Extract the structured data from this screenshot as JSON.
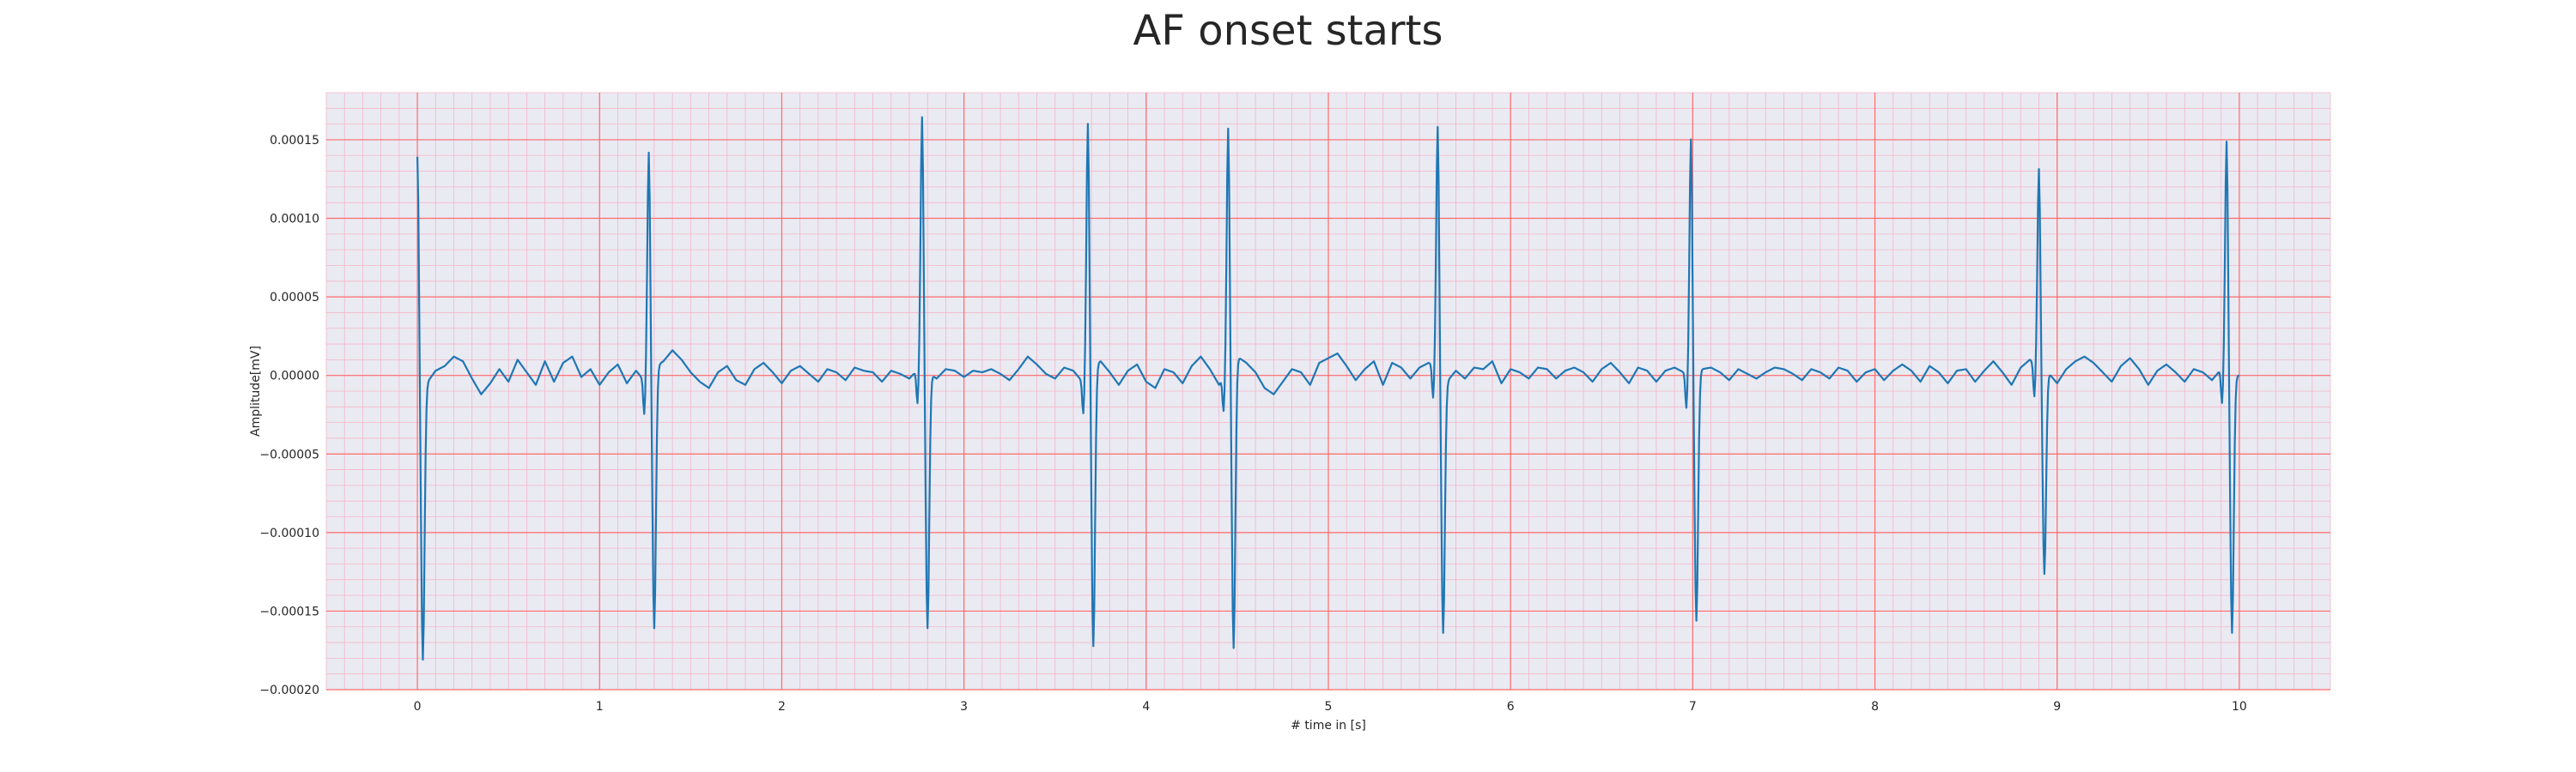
{
  "chart_data": {
    "type": "line",
    "title": "AF onset starts",
    "xlabel": "# time in [s]",
    "ylabel": "Amplitude[mV]",
    "xlim": [
      -0.5,
      10.5
    ],
    "ylim": [
      -0.0002,
      0.00018
    ],
    "xticks": [
      0,
      1,
      2,
      3,
      4,
      5,
      6,
      7,
      8,
      9,
      10
    ],
    "xtick_labels": [
      "0",
      "1",
      "2",
      "3",
      "4",
      "5",
      "6",
      "7",
      "8",
      "9",
      "10"
    ],
    "yticks": [
      -0.0002,
      -0.00015,
      -0.0001,
      -5e-05,
      0,
      5e-05,
      0.0001,
      0.00015
    ],
    "ytick_labels": [
      "−0.00020",
      "−0.00015",
      "−0.00010",
      "−0.00005",
      "0.00000",
      "0.00005",
      "0.00010",
      "0.00015"
    ],
    "grid": true,
    "colors": {
      "background": "#eaeaf2",
      "major_grid": "#ff6b6b",
      "minor_grid": "#f4b6c8",
      "line": "#1f77b4"
    },
    "series": [
      {
        "color": "#1f77b4",
        "r_peaks": [
          {
            "t": 0.0,
            "peak": 0.00014,
            "trough": -0.000178
          },
          {
            "t": 1.27,
            "peak": 0.000143,
            "trough": -0.000166
          },
          {
            "t": 2.77,
            "peak": 0.000162,
            "trough": -0.000163
          },
          {
            "t": 3.68,
            "peak": 0.000159,
            "trough": -0.000179
          },
          {
            "t": 4.45,
            "peak": 0.000155,
            "trough": -0.000182
          },
          {
            "t": 5.6,
            "peak": 0.000153,
            "trough": -0.000164
          },
          {
            "t": 6.99,
            "peak": 0.000153,
            "trough": -0.000156
          },
          {
            "t": 8.9,
            "peak": 0.000126,
            "trough": -0.00013
          },
          {
            "t": 9.93,
            "peak": 0.000148,
            "trough": -0.000164
          }
        ],
        "baseline": {
          "t_start": 0.0,
          "t_end": 10.0,
          "step": 0.05,
          "values": [
            0.0,
            -5e-06,
            3e-06,
            6e-06,
            1.2e-05,
            9e-06,
            -2e-06,
            -1.2e-05,
            -5e-06,
            4e-06,
            -4e-06,
            1e-05,
            2e-06,
            -6e-06,
            9e-06,
            -4e-06,
            8e-06,
            1.2e-05,
            -1e-06,
            4e-06,
            -6e-06,
            2e-06,
            7e-06,
            -5e-06,
            3e-06,
            -4e-06,
            5e-06,
            9e-06,
            1.6e-05,
            1e-05,
            2e-06,
            -4e-06,
            -8e-06,
            2e-06,
            6e-06,
            -3e-06,
            -6e-06,
            4e-06,
            8e-06,
            2e-06,
            -5e-06,
            3e-06,
            6e-06,
            1e-06,
            -4e-06,
            4e-06,
            2e-06,
            -3e-06,
            5e-06,
            3e-06,
            2e-06,
            -4e-06,
            3e-06,
            1e-06,
            -2e-06,
            4e-06,
            2e-06,
            -2e-06,
            4e-06,
            3e-06,
            -1e-06,
            3e-06,
            2e-06,
            4e-06,
            1e-06,
            -3e-06,
            4e-06,
            1.2e-05,
            7e-06,
            1e-06,
            -2e-06,
            5e-06,
            3e-06,
            -4e-06,
            6e-06,
            9e-06,
            2e-06,
            -6e-06,
            3e-06,
            7e-06,
            -4e-06,
            -8e-06,
            4e-06,
            2e-06,
            -5e-06,
            6e-06,
            1.2e-05,
            4e-06,
            -6e-06,
            3e-06,
            1.2e-05,
            8e-06,
            2e-06,
            -8e-06,
            -1.2e-05,
            -4e-06,
            4e-06,
            2e-06,
            -6e-06,
            8e-06,
            1.1e-05,
            1.4e-05,
            6e-06,
            -3e-06,
            4e-06,
            9e-06,
            -6e-06,
            8e-06,
            5e-06,
            -2e-06,
            5e-06,
            8e-06,
            6e-06,
            -4e-06,
            3e-06,
            -2e-06,
            5e-06,
            4e-06,
            9e-06,
            -5e-06,
            4e-06,
            2e-06,
            -2e-06,
            5e-06,
            4e-06,
            -2e-06,
            3e-06,
            5e-06,
            2e-06,
            -4e-06,
            4e-06,
            8e-06,
            2e-06,
            -5e-06,
            5e-06,
            3e-06,
            -4e-06,
            3e-06,
            5e-06,
            2e-06,
            -3e-06,
            4e-06,
            5e-06,
            2e-06,
            -3e-06,
            4e-06,
            1e-06,
            -2e-06,
            2e-06,
            5e-06,
            4e-06,
            1e-06,
            -3e-06,
            4e-06,
            2e-06,
            -2e-06,
            5e-06,
            3e-06,
            -4e-06,
            2e-06,
            4e-06,
            -3e-06,
            3e-06,
            7e-06,
            3e-06,
            -4e-06,
            6e-06,
            2e-06,
            -5e-06,
            3e-06,
            4e-06,
            -4e-06,
            3e-06,
            9e-06,
            2e-06,
            -6e-06,
            5e-06,
            1e-05,
            6e-06,
            2e-06,
            -5e-06,
            4e-06,
            9e-06,
            1.2e-05,
            8e-06,
            2e-06,
            -4e-06,
            6e-06,
            1.1e-05,
            4e-06,
            -6e-06,
            3e-06,
            7e-06,
            2e-06,
            -4e-06,
            4e-06,
            2e-06,
            -3e-06,
            4e-06,
            0.0
          ]
        }
      }
    ]
  }
}
